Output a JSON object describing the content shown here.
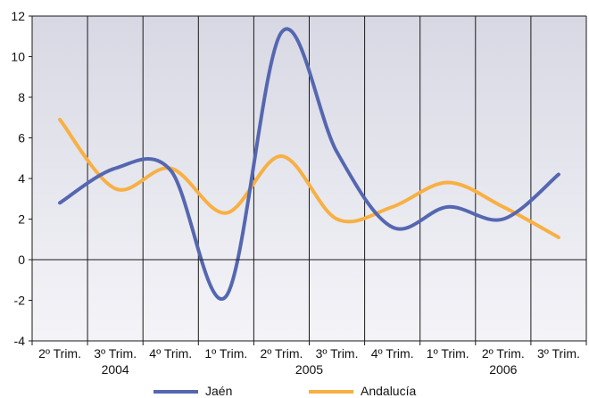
{
  "chart_data": {
    "type": "line",
    "title": "",
    "xlabel": "",
    "ylabel": "",
    "categories": [
      "2º Trim.",
      "3º Trim.",
      "4º Trim.",
      "1º Trim.",
      "2º Trim.",
      "3º Trim.",
      "4º Trim.",
      "1º Trim.",
      "2º Trim.",
      "3º Trim."
    ],
    "year_labels": [
      {
        "label": "2004",
        "category_index": 1
      },
      {
        "label": "2005",
        "category_index": 4.5
      },
      {
        "label": "2006",
        "category_index": 8
      }
    ],
    "ylim": [
      -4,
      12
    ],
    "yticks": [
      -4,
      -2,
      0,
      2,
      4,
      6,
      8,
      10,
      12
    ],
    "grid": {
      "horizontal": false,
      "vertical": true,
      "zero_line": true
    },
    "legend": "bottom",
    "plot_background": "#e6e6ee",
    "series": [
      {
        "name": "Jaén",
        "color": "#5567b0",
        "values": [
          2.8,
          4.5,
          4.4,
          -1.8,
          11.2,
          5.3,
          1.6,
          2.6,
          2.0,
          4.2
        ]
      },
      {
        "name": "Andalucía",
        "color": "#f7b043",
        "values": [
          6.9,
          3.5,
          4.5,
          2.3,
          5.1,
          2.0,
          2.6,
          3.8,
          2.6,
          1.1
        ]
      }
    ]
  }
}
